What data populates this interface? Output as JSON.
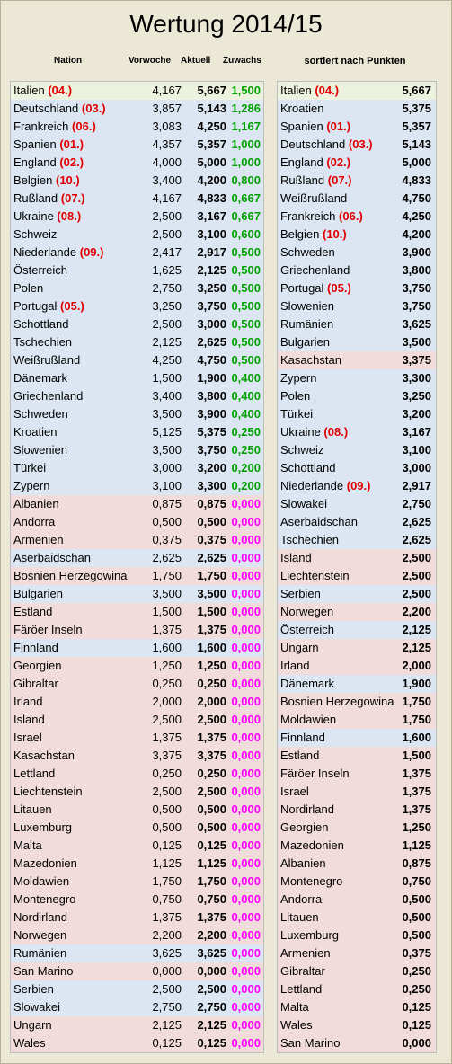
{
  "title": "Wertung 2014/15",
  "headers": {
    "nation": "Nation",
    "vorwoche": "Vorwoche",
    "aktuell": "Aktuell",
    "zuwachs": "Zuwachs",
    "sorted": "sortiert nach Punkten"
  },
  "colors": {
    "highlight": "#ecf2dd",
    "blue": "#dce6f2",
    "red": "#f2dcdb",
    "rank": "#e00000",
    "gain_positive": "#00a000",
    "gain_zero": "#ff00ff"
  },
  "left_rows": [
    {
      "nation": "Italien",
      "rank": "(04.)",
      "vorwoche": "4,167",
      "aktuell": "5,667",
      "zuwachs": "1,500",
      "bg": "hi"
    },
    {
      "nation": "Deutschland",
      "rank": "(03.)",
      "vorwoche": "3,857",
      "aktuell": "5,143",
      "zuwachs": "1,286",
      "bg": "blue"
    },
    {
      "nation": "Frankreich",
      "rank": "(06.)",
      "vorwoche": "3,083",
      "aktuell": "4,250",
      "zuwachs": "1,167",
      "bg": "blue"
    },
    {
      "nation": "Spanien",
      "rank": "(01.)",
      "vorwoche": "4,357",
      "aktuell": "5,357",
      "zuwachs": "1,000",
      "bg": "blue"
    },
    {
      "nation": "England",
      "rank": "(02.)",
      "vorwoche": "4,000",
      "aktuell": "5,000",
      "zuwachs": "1,000",
      "bg": "blue"
    },
    {
      "nation": "Belgien",
      "rank": "(10.)",
      "vorwoche": "3,400",
      "aktuell": "4,200",
      "zuwachs": "0,800",
      "bg": "blue"
    },
    {
      "nation": "Rußland",
      "rank": "(07.)",
      "vorwoche": "4,167",
      "aktuell": "4,833",
      "zuwachs": "0,667",
      "bg": "blue"
    },
    {
      "nation": "Ukraine",
      "rank": "(08.)",
      "vorwoche": "2,500",
      "aktuell": "3,167",
      "zuwachs": "0,667",
      "bg": "blue"
    },
    {
      "nation": "Schweiz",
      "rank": "",
      "vorwoche": "2,500",
      "aktuell": "3,100",
      "zuwachs": "0,600",
      "bg": "blue"
    },
    {
      "nation": "Niederlande",
      "rank": "(09.)",
      "vorwoche": "2,417",
      "aktuell": "2,917",
      "zuwachs": "0,500",
      "bg": "blue"
    },
    {
      "nation": "Österreich",
      "rank": "",
      "vorwoche": "1,625",
      "aktuell": "2,125",
      "zuwachs": "0,500",
      "bg": "blue"
    },
    {
      "nation": "Polen",
      "rank": "",
      "vorwoche": "2,750",
      "aktuell": "3,250",
      "zuwachs": "0,500",
      "bg": "blue"
    },
    {
      "nation": "Portugal",
      "rank": "(05.)",
      "vorwoche": "3,250",
      "aktuell": "3,750",
      "zuwachs": "0,500",
      "bg": "blue"
    },
    {
      "nation": "Schottland",
      "rank": "",
      "vorwoche": "2,500",
      "aktuell": "3,000",
      "zuwachs": "0,500",
      "bg": "blue"
    },
    {
      "nation": "Tschechien",
      "rank": "",
      "vorwoche": "2,125",
      "aktuell": "2,625",
      "zuwachs": "0,500",
      "bg": "blue"
    },
    {
      "nation": "Weißrußland",
      "rank": "",
      "vorwoche": "4,250",
      "aktuell": "4,750",
      "zuwachs": "0,500",
      "bg": "blue"
    },
    {
      "nation": "Dänemark",
      "rank": "",
      "vorwoche": "1,500",
      "aktuell": "1,900",
      "zuwachs": "0,400",
      "bg": "blue"
    },
    {
      "nation": "Griechenland",
      "rank": "",
      "vorwoche": "3,400",
      "aktuell": "3,800",
      "zuwachs": "0,400",
      "bg": "blue"
    },
    {
      "nation": "Schweden",
      "rank": "",
      "vorwoche": "3,500",
      "aktuell": "3,900",
      "zuwachs": "0,400",
      "bg": "blue"
    },
    {
      "nation": "Kroatien",
      "rank": "",
      "vorwoche": "5,125",
      "aktuell": "5,375",
      "zuwachs": "0,250",
      "bg": "blue"
    },
    {
      "nation": "Slowenien",
      "rank": "",
      "vorwoche": "3,500",
      "aktuell": "3,750",
      "zuwachs": "0,250",
      "bg": "blue"
    },
    {
      "nation": "Türkei",
      "rank": "",
      "vorwoche": "3,000",
      "aktuell": "3,200",
      "zuwachs": "0,200",
      "bg": "blue"
    },
    {
      "nation": "Zypern",
      "rank": "",
      "vorwoche": "3,100",
      "aktuell": "3,300",
      "zuwachs": "0,200",
      "bg": "blue"
    },
    {
      "nation": "Albanien",
      "rank": "",
      "vorwoche": "0,875",
      "aktuell": "0,875",
      "zuwachs": "0,000",
      "bg": "red"
    },
    {
      "nation": "Andorra",
      "rank": "",
      "vorwoche": "0,500",
      "aktuell": "0,500",
      "zuwachs": "0,000",
      "bg": "red"
    },
    {
      "nation": "Armenien",
      "rank": "",
      "vorwoche": "0,375",
      "aktuell": "0,375",
      "zuwachs": "0,000",
      "bg": "red"
    },
    {
      "nation": "Aserbaidschan",
      "rank": "",
      "vorwoche": "2,625",
      "aktuell": "2,625",
      "zuwachs": "0,000",
      "bg": "blue"
    },
    {
      "nation": "Bosnien Herzegowina",
      "rank": "",
      "vorwoche": "1,750",
      "aktuell": "1,750",
      "zuwachs": "0,000",
      "bg": "red"
    },
    {
      "nation": "Bulgarien",
      "rank": "",
      "vorwoche": "3,500",
      "aktuell": "3,500",
      "zuwachs": "0,000",
      "bg": "blue"
    },
    {
      "nation": "Estland",
      "rank": "",
      "vorwoche": "1,500",
      "aktuell": "1,500",
      "zuwachs": "0,000",
      "bg": "red"
    },
    {
      "nation": "Färöer Inseln",
      "rank": "",
      "vorwoche": "1,375",
      "aktuell": "1,375",
      "zuwachs": "0,000",
      "bg": "red"
    },
    {
      "nation": "Finnland",
      "rank": "",
      "vorwoche": "1,600",
      "aktuell": "1,600",
      "zuwachs": "0,000",
      "bg": "blue"
    },
    {
      "nation": "Georgien",
      "rank": "",
      "vorwoche": "1,250",
      "aktuell": "1,250",
      "zuwachs": "0,000",
      "bg": "red"
    },
    {
      "nation": "Gibraltar",
      "rank": "",
      "vorwoche": "0,250",
      "aktuell": "0,250",
      "zuwachs": "0,000",
      "bg": "red"
    },
    {
      "nation": "Irland",
      "rank": "",
      "vorwoche": "2,000",
      "aktuell": "2,000",
      "zuwachs": "0,000",
      "bg": "red"
    },
    {
      "nation": "Island",
      "rank": "",
      "vorwoche": "2,500",
      "aktuell": "2,500",
      "zuwachs": "0,000",
      "bg": "red"
    },
    {
      "nation": "Israel",
      "rank": "",
      "vorwoche": "1,375",
      "aktuell": "1,375",
      "zuwachs": "0,000",
      "bg": "red"
    },
    {
      "nation": "Kasachstan",
      "rank": "",
      "vorwoche": "3,375",
      "aktuell": "3,375",
      "zuwachs": "0,000",
      "bg": "red"
    },
    {
      "nation": "Lettland",
      "rank": "",
      "vorwoche": "0,250",
      "aktuell": "0,250",
      "zuwachs": "0,000",
      "bg": "red"
    },
    {
      "nation": "Liechtenstein",
      "rank": "",
      "vorwoche": "2,500",
      "aktuell": "2,500",
      "zuwachs": "0,000",
      "bg": "red"
    },
    {
      "nation": "Litauen",
      "rank": "",
      "vorwoche": "0,500",
      "aktuell": "0,500",
      "zuwachs": "0,000",
      "bg": "red"
    },
    {
      "nation": "Luxemburg",
      "rank": "",
      "vorwoche": "0,500",
      "aktuell": "0,500",
      "zuwachs": "0,000",
      "bg": "red"
    },
    {
      "nation": "Malta",
      "rank": "",
      "vorwoche": "0,125",
      "aktuell": "0,125",
      "zuwachs": "0,000",
      "bg": "red"
    },
    {
      "nation": "Mazedonien",
      "rank": "",
      "vorwoche": "1,125",
      "aktuell": "1,125",
      "zuwachs": "0,000",
      "bg": "red"
    },
    {
      "nation": "Moldawien",
      "rank": "",
      "vorwoche": "1,750",
      "aktuell": "1,750",
      "zuwachs": "0,000",
      "bg": "red"
    },
    {
      "nation": "Montenegro",
      "rank": "",
      "vorwoche": "0,750",
      "aktuell": "0,750",
      "zuwachs": "0,000",
      "bg": "red"
    },
    {
      "nation": "Nordirland",
      "rank": "",
      "vorwoche": "1,375",
      "aktuell": "1,375",
      "zuwachs": "0,000",
      "bg": "red"
    },
    {
      "nation": "Norwegen",
      "rank": "",
      "vorwoche": "2,200",
      "aktuell": "2,200",
      "zuwachs": "0,000",
      "bg": "red"
    },
    {
      "nation": "Rumänien",
      "rank": "",
      "vorwoche": "3,625",
      "aktuell": "3,625",
      "zuwachs": "0,000",
      "bg": "blue"
    },
    {
      "nation": "San Marino",
      "rank": "",
      "vorwoche": "0,000",
      "aktuell": "0,000",
      "zuwachs": "0,000",
      "bg": "red"
    },
    {
      "nation": "Serbien",
      "rank": "",
      "vorwoche": "2,500",
      "aktuell": "2,500",
      "zuwachs": "0,000",
      "bg": "blue"
    },
    {
      "nation": "Slowakei",
      "rank": "",
      "vorwoche": "2,750",
      "aktuell": "2,750",
      "zuwachs": "0,000",
      "bg": "blue"
    },
    {
      "nation": "Ungarn",
      "rank": "",
      "vorwoche": "2,125",
      "aktuell": "2,125",
      "zuwachs": "0,000",
      "bg": "red"
    },
    {
      "nation": "Wales",
      "rank": "",
      "vorwoche": "0,125",
      "aktuell": "0,125",
      "zuwachs": "0,000",
      "bg": "red"
    }
  ],
  "right_rows": [
    {
      "nation": "Italien",
      "rank": "(04.)",
      "punkte": "5,667",
      "bg": "hi"
    },
    {
      "nation": "Kroatien",
      "rank": "",
      "punkte": "5,375",
      "bg": "blue"
    },
    {
      "nation": "Spanien",
      "rank": "(01.)",
      "punkte": "5,357",
      "bg": "blue"
    },
    {
      "nation": "Deutschland",
      "rank": "(03.)",
      "punkte": "5,143",
      "bg": "blue"
    },
    {
      "nation": "England",
      "rank": "(02.)",
      "punkte": "5,000",
      "bg": "blue"
    },
    {
      "nation": "Rußland",
      "rank": "(07.)",
      "punkte": "4,833",
      "bg": "blue"
    },
    {
      "nation": "Weißrußland",
      "rank": "",
      "punkte": "4,750",
      "bg": "blue"
    },
    {
      "nation": "Frankreich",
      "rank": "(06.)",
      "punkte": "4,250",
      "bg": "blue"
    },
    {
      "nation": "Belgien",
      "rank": "(10.)",
      "punkte": "4,200",
      "bg": "blue"
    },
    {
      "nation": "Schweden",
      "rank": "",
      "punkte": "3,900",
      "bg": "blue"
    },
    {
      "nation": "Griechenland",
      "rank": "",
      "punkte": "3,800",
      "bg": "blue"
    },
    {
      "nation": "Portugal",
      "rank": "(05.)",
      "punkte": "3,750",
      "bg": "blue"
    },
    {
      "nation": "Slowenien",
      "rank": "",
      "punkte": "3,750",
      "bg": "blue"
    },
    {
      "nation": "Rumänien",
      "rank": "",
      "punkte": "3,625",
      "bg": "blue"
    },
    {
      "nation": "Bulgarien",
      "rank": "",
      "punkte": "3,500",
      "bg": "blue"
    },
    {
      "nation": "Kasachstan",
      "rank": "",
      "punkte": "3,375",
      "bg": "red"
    },
    {
      "nation": "Zypern",
      "rank": "",
      "punkte": "3,300",
      "bg": "blue"
    },
    {
      "nation": "Polen",
      "rank": "",
      "punkte": "3,250",
      "bg": "blue"
    },
    {
      "nation": "Türkei",
      "rank": "",
      "punkte": "3,200",
      "bg": "blue"
    },
    {
      "nation": "Ukraine",
      "rank": "(08.)",
      "punkte": "3,167",
      "bg": "blue"
    },
    {
      "nation": "Schweiz",
      "rank": "",
      "punkte": "3,100",
      "bg": "blue"
    },
    {
      "nation": "Schottland",
      "rank": "",
      "punkte": "3,000",
      "bg": "blue"
    },
    {
      "nation": "Niederlande",
      "rank": "(09.)",
      "punkte": "2,917",
      "bg": "blue"
    },
    {
      "nation": "Slowakei",
      "rank": "",
      "punkte": "2,750",
      "bg": "blue"
    },
    {
      "nation": "Aserbaidschan",
      "rank": "",
      "punkte": "2,625",
      "bg": "blue"
    },
    {
      "nation": "Tschechien",
      "rank": "",
      "punkte": "2,625",
      "bg": "blue"
    },
    {
      "nation": "Island",
      "rank": "",
      "punkte": "2,500",
      "bg": "red"
    },
    {
      "nation": "Liechtenstein",
      "rank": "",
      "punkte": "2,500",
      "bg": "red"
    },
    {
      "nation": "Serbien",
      "rank": "",
      "punkte": "2,500",
      "bg": "blue"
    },
    {
      "nation": "Norwegen",
      "rank": "",
      "punkte": "2,200",
      "bg": "red"
    },
    {
      "nation": "Österreich",
      "rank": "",
      "punkte": "2,125",
      "bg": "blue"
    },
    {
      "nation": "Ungarn",
      "rank": "",
      "punkte": "2,125",
      "bg": "red"
    },
    {
      "nation": "Irland",
      "rank": "",
      "punkte": "2,000",
      "bg": "red"
    },
    {
      "nation": "Dänemark",
      "rank": "",
      "punkte": "1,900",
      "bg": "blue"
    },
    {
      "nation": "Bosnien Herzegowina",
      "rank": "",
      "punkte": "1,750",
      "bg": "red"
    },
    {
      "nation": "Moldawien",
      "rank": "",
      "punkte": "1,750",
      "bg": "red"
    },
    {
      "nation": "Finnland",
      "rank": "",
      "punkte": "1,600",
      "bg": "blue"
    },
    {
      "nation": "Estland",
      "rank": "",
      "punkte": "1,500",
      "bg": "red"
    },
    {
      "nation": "Färöer Inseln",
      "rank": "",
      "punkte": "1,375",
      "bg": "red"
    },
    {
      "nation": "Israel",
      "rank": "",
      "punkte": "1,375",
      "bg": "red"
    },
    {
      "nation": "Nordirland",
      "rank": "",
      "punkte": "1,375",
      "bg": "red"
    },
    {
      "nation": "Georgien",
      "rank": "",
      "punkte": "1,250",
      "bg": "red"
    },
    {
      "nation": "Mazedonien",
      "rank": "",
      "punkte": "1,125",
      "bg": "red"
    },
    {
      "nation": "Albanien",
      "rank": "",
      "punkte": "0,875",
      "bg": "red"
    },
    {
      "nation": "Montenegro",
      "rank": "",
      "punkte": "0,750",
      "bg": "red"
    },
    {
      "nation": "Andorra",
      "rank": "",
      "punkte": "0,500",
      "bg": "red"
    },
    {
      "nation": "Litauen",
      "rank": "",
      "punkte": "0,500",
      "bg": "red"
    },
    {
      "nation": "Luxemburg",
      "rank": "",
      "punkte": "0,500",
      "bg": "red"
    },
    {
      "nation": "Armenien",
      "rank": "",
      "punkte": "0,375",
      "bg": "red"
    },
    {
      "nation": "Gibraltar",
      "rank": "",
      "punkte": "0,250",
      "bg": "red"
    },
    {
      "nation": "Lettland",
      "rank": "",
      "punkte": "0,250",
      "bg": "red"
    },
    {
      "nation": "Malta",
      "rank": "",
      "punkte": "0,125",
      "bg": "red"
    },
    {
      "nation": "Wales",
      "rank": "",
      "punkte": "0,125",
      "bg": "red"
    },
    {
      "nation": "San Marino",
      "rank": "",
      "punkte": "0,000",
      "bg": "red"
    }
  ]
}
